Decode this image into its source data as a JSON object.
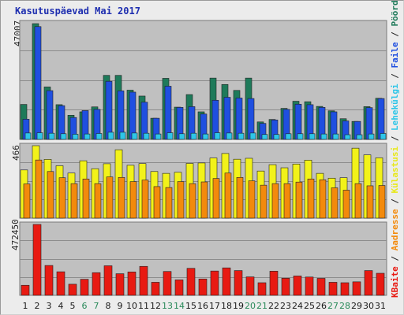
{
  "title": "Kasutuspäevad Mai 2017",
  "colors": {
    "visits": "#1e7a5a",
    "pages": "#1f4fe0",
    "files": "#2ec6e8",
    "hits": "#f2f21a",
    "sites": "#f38a0c",
    "kbytes": "#e81a12",
    "weekend_label": "#2a8a5a",
    "weekday_label": "#1a1a1a",
    "panel_bg": "#c0c0c0"
  },
  "legend": {
    "pooordumisi": "Pöördumisi",
    "sep1": " / ",
    "faile": "Faile",
    "sep2": " / ",
    "lehekulgi": "Lehekülgi",
    "sep3": " / ",
    "kulastusi": "Külastusi",
    "sep4": " / ",
    "aadresse": "Aadresse",
    "sep5": " / ",
    "kbaite": "KBaite"
  },
  "chart_data": {
    "type": "bar",
    "categories": [
      "1",
      "2",
      "3",
      "4",
      "5",
      "6",
      "7",
      "8",
      "9",
      "10",
      "11",
      "12",
      "13",
      "14",
      "15",
      "16",
      "17",
      "18",
      "19",
      "20",
      "21",
      "22",
      "23",
      "24",
      "25",
      "26",
      "27",
      "28",
      "29",
      "30",
      "31"
    ],
    "weekend_days": [
      "6",
      "7",
      "13",
      "14",
      "20",
      "21",
      "27",
      "28"
    ],
    "panels": [
      {
        "axis_label": "47007",
        "ylim": [
          0,
          47007
        ],
        "series": [
          {
            "name": "Pöördumisi",
            "values": [
              14200,
              47007,
              21300,
              14100,
              9800,
              11200,
              13200,
              26000,
              26000,
              20000,
              17600,
              8600,
              24800,
              13100,
              18200,
              11200,
              24900,
              22300,
              19900,
              24900,
              7100,
              8100,
              12600,
              15500,
              15300,
              13400,
              11600,
              8400,
              7300,
              13300,
              16700
            ]
          },
          {
            "name": "Faile",
            "values": [
              8200,
              45800,
              19800,
              13700,
              8900,
              11700,
              12200,
              23600,
              19700,
              19200,
              15100,
              8600,
              21600,
              13000,
              13300,
              10300,
              15900,
              17100,
              16800,
              16600,
              6500,
              7900,
              12200,
              14300,
              14100,
              13000,
              11200,
              7500,
              7300,
              12900,
              16600
            ]
          },
          {
            "name": "Lehekülgi",
            "values": [
              2600,
              2700,
              2500,
              2300,
              2100,
              2200,
              2400,
              2900,
              2900,
              2600,
              2500,
              2200,
              2700,
              2300,
              2500,
              2200,
              2700,
              2600,
              2500,
              2600,
              2000,
              2000,
              2300,
              2300,
              2300,
              2200,
              2200,
              1900,
              1900,
              2200,
              2400
            ]
          }
        ]
      },
      {
        "axis_label": "466",
        "ylim": [
          0,
          466
        ],
        "series": [
          {
            "name": "Külastusi",
            "values": [
              310,
              466,
              378,
              337,
              290,
              369,
              318,
              350,
              440,
              340,
              351,
              300,
              288,
              295,
              352,
              355,
              387,
              416,
              379,
              385,
              303,
              344,
              324,
              348,
              373,
              288,
              257,
              260,
              450,
              407,
              388
            ]
          },
          {
            "name": "Aadresse",
            "values": [
              220,
              374,
              300,
              260,
              222,
              252,
              222,
              265,
              262,
              235,
              245,
              203,
              197,
              235,
              222,
              233,
              255,
              290,
              262,
              240,
              212,
              222,
              222,
              232,
              252,
              247,
              195,
              180,
              222,
              208,
              210
            ]
          }
        ]
      },
      {
        "axis_label": "472450",
        "ylim": [
          0,
          472450
        ],
        "series": [
          {
            "name": "KBaite",
            "values": [
              67000,
              472450,
              199000,
              157000,
              74000,
              107000,
              151000,
              197000,
              144000,
              156000,
              193000,
              87000,
              159000,
              103000,
              180000,
              109000,
              162000,
              183000,
              165000,
              123000,
              84000,
              161000,
              114000,
              129000,
              122000,
              113000,
              87000,
              84000,
              90000,
              165000,
              147000
            ]
          }
        ]
      }
    ]
  }
}
